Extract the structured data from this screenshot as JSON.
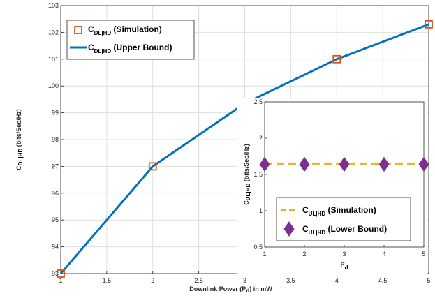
{
  "chart_data": [
    {
      "type": "line",
      "xlabel": "Downlink Power (P",
      "xlabel_sub": "d",
      "xlabel_tail": ") in mW",
      "ylabel": "C",
      "ylabel_sub": "DL|HD",
      "ylabel_tail": " (bits/Sec/Hz)",
      "xlim": [
        1,
        5
      ],
      "ylim": [
        93,
        103
      ],
      "xticks": [
        1,
        1.5,
        2,
        2.5,
        3,
        3.5,
        4,
        4.5,
        5
      ],
      "yticks": [
        93,
        94,
        95,
        96,
        97,
        98,
        99,
        100,
        101,
        102,
        103
      ],
      "grid": true,
      "legend_position": "top-left",
      "series": [
        {
          "name": "C",
          "name_sub": "DL|HD",
          "name_tail": " (Simulation)",
          "style": "square-markers",
          "color": "#d95319",
          "x": [
            1,
            2,
            3,
            4,
            5
          ],
          "y": [
            93.0,
            97.0,
            99.35,
            101.0,
            102.3
          ]
        },
        {
          "name": "C",
          "name_sub": "DL|HD",
          "name_tail": " (Upper Bound)",
          "style": "solid-line",
          "color": "#0072bd",
          "x": [
            1,
            2,
            3,
            4,
            5
          ],
          "y": [
            93.0,
            97.0,
            99.35,
            101.0,
            102.3
          ]
        }
      ]
    },
    {
      "type": "line",
      "inset": true,
      "xlabel": "P",
      "xlabel_sub": "d",
      "ylabel": "C",
      "ylabel_sub": "UL|HD",
      "ylabel_tail": " (bits/Sec/Hz)",
      "xlim": [
        1,
        5
      ],
      "ylim": [
        0.5,
        2.5
      ],
      "xticks": [
        1,
        2,
        3,
        4,
        5
      ],
      "yticks": [
        0.5,
        1,
        1.5,
        2,
        2.5
      ],
      "grid": false,
      "legend_position": "bottom-right",
      "series": [
        {
          "name": "C",
          "name_sub": "UL|HD",
          "name_tail": " (Simulation)",
          "style": "dashed-line",
          "color": "#edb120",
          "x": [
            1,
            2,
            3,
            4,
            5
          ],
          "y": [
            1.65,
            1.65,
            1.65,
            1.65,
            1.65
          ]
        },
        {
          "name": "C",
          "name_sub": "UL|HD",
          "name_tail": " (Lower Bound)",
          "style": "diamond-markers",
          "color": "#7e2f8e",
          "x": [
            1,
            2,
            3,
            4,
            5
          ],
          "y": [
            1.64,
            1.64,
            1.64,
            1.64,
            1.64
          ]
        }
      ]
    }
  ]
}
